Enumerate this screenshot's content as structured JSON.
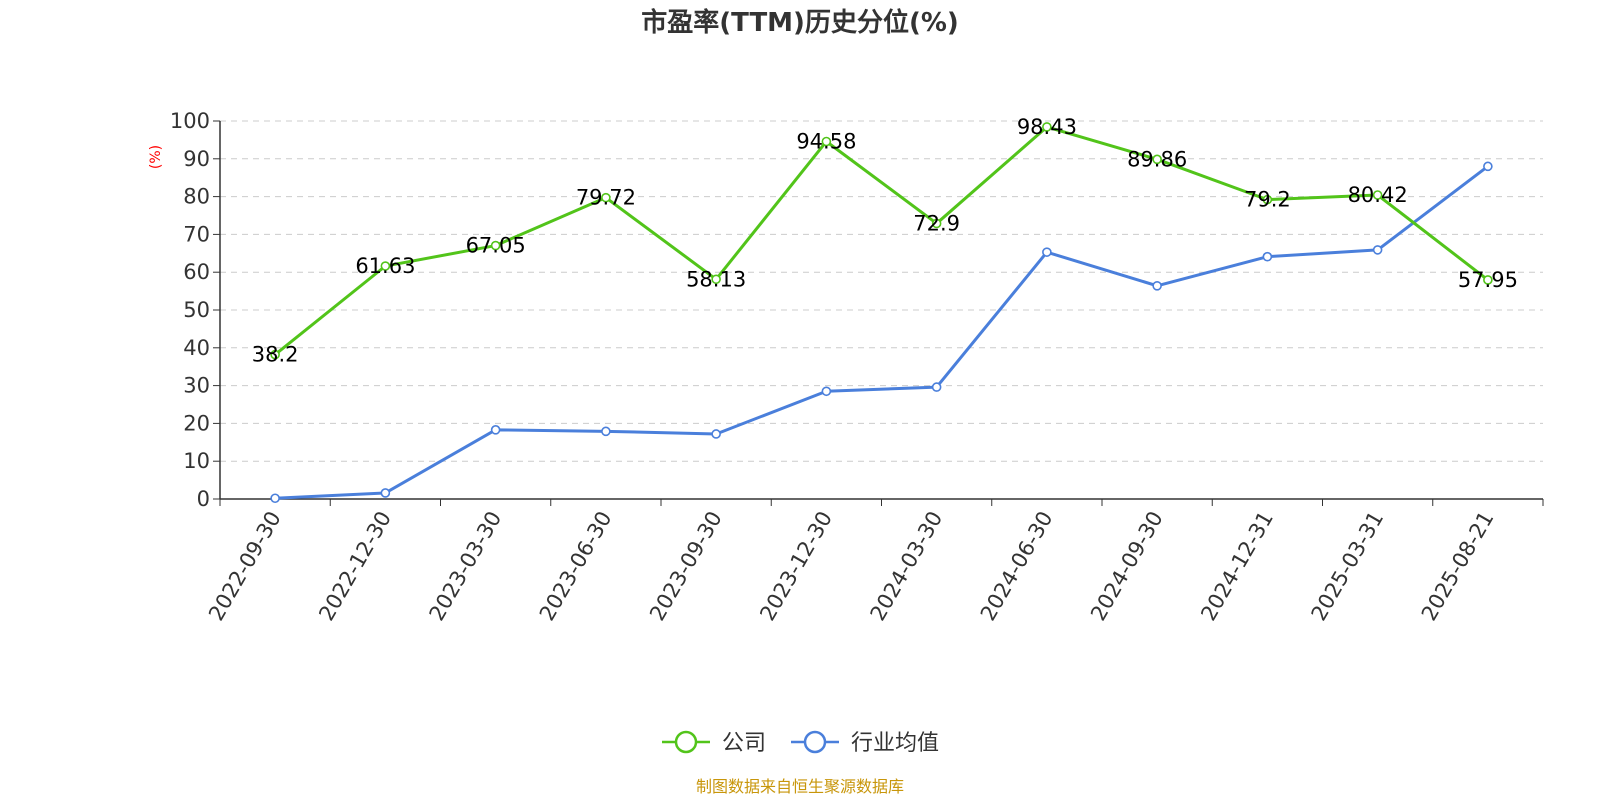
{
  "chart_data": {
    "type": "line",
    "title": "市盈率(TTM)历史分位(%)",
    "ylabel": "(%)",
    "xlabel": "",
    "ylim": [
      0,
      100
    ],
    "yticks": [
      0,
      10,
      20,
      30,
      40,
      50,
      60,
      70,
      80,
      90,
      100
    ],
    "grid": "horizontal dashed",
    "legend_position": "bottom-center",
    "categories": [
      "2022-09-30",
      "2022-12-30",
      "2023-03-30",
      "2023-06-30",
      "2023-09-30",
      "2023-12-30",
      "2024-03-30",
      "2024-06-30",
      "2024-09-30",
      "2024-12-31",
      "2025-03-31",
      "2025-08-21"
    ],
    "series": [
      {
        "name": "公司",
        "color": "#52c41a",
        "values": [
          38.2,
          61.63,
          67.05,
          79.72,
          58.13,
          94.58,
          72.9,
          98.43,
          89.86,
          79.2,
          80.42,
          57.95
        ],
        "labels": [
          "38.2",
          "61.63",
          "67.05",
          "79.72",
          "58.13",
          "94.58",
          "72.9",
          "98.43",
          "89.86",
          "79.2",
          "80.42",
          "57.95"
        ],
        "show_labels": true
      },
      {
        "name": "行业均值",
        "color": "#4a7fdb",
        "values": [
          0.2,
          1.6,
          18.3,
          17.9,
          17.2,
          28.5,
          29.6,
          65.3,
          56.4,
          64.1,
          65.9,
          88.0
        ],
        "show_labels": false
      }
    ]
  },
  "source": "制图数据来自恒生聚源数据库"
}
